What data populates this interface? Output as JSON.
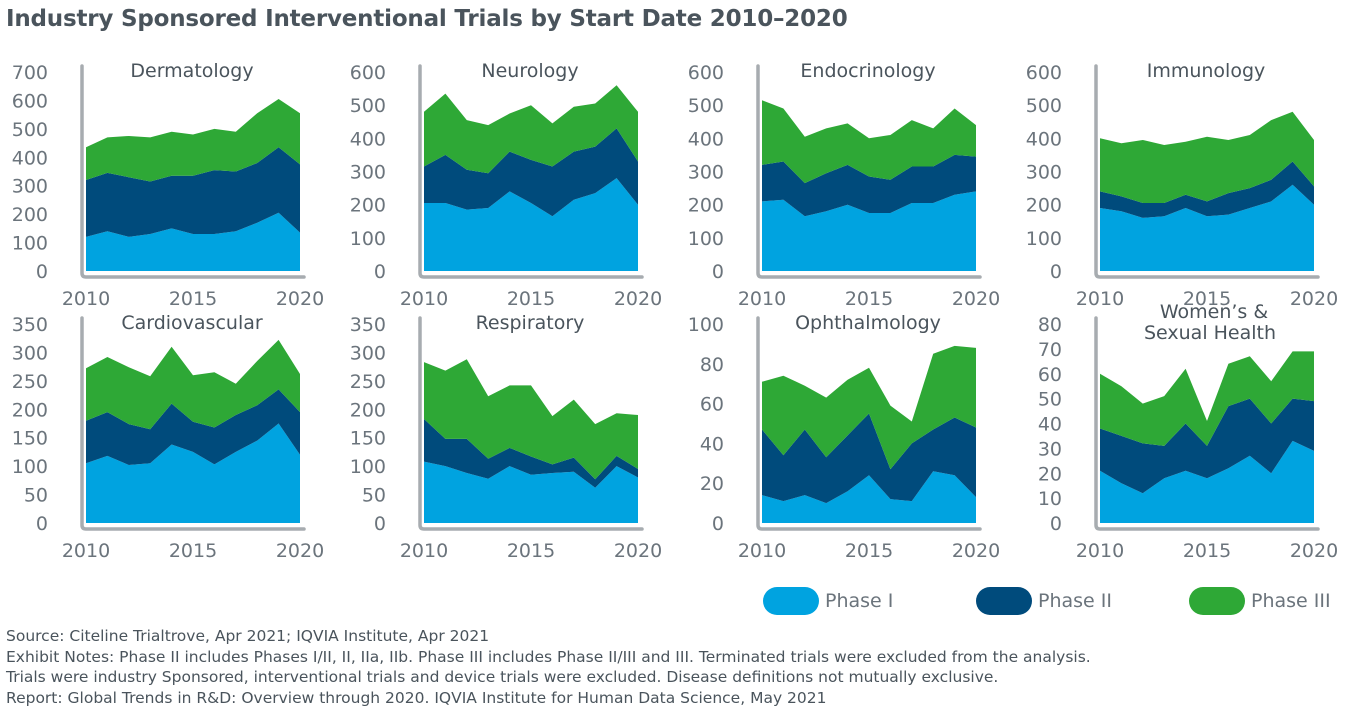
{
  "title": "Industry Sponsored Interventional Trials by Start Date 2010–2020",
  "colors": {
    "phase1": "#00a3e0",
    "phase2": "#004b7c",
    "phase3": "#2ea836",
    "axis": "#a7acb0",
    "text": "#6b747c"
  },
  "legend": {
    "phase1": "Phase I",
    "phase2": "Phase II",
    "phase3": "Phase III"
  },
  "notes": {
    "source": "Source: Citeline Trialtrove, Apr 2021; IQVIA Institute, Apr 2021",
    "exhibit": "Exhibit Notes: Phase II includes Phases I/II, II, IIa, IIb. Phase III includes Phase II/III and III. Terminated trials were excluded from the analysis.",
    "trials": "Trials were industry Sponsored, interventional trials and device trials were excluded. Disease definitions not mutually exclusive.",
    "report": "Report: Global Trends in R&D: Overview through 2020. IQVIA Institute for Human Data Science, May 2021"
  },
  "chart_data": [
    {
      "type": "area",
      "stacked": true,
      "title": "Dermatology",
      "x": [
        2010,
        2011,
        2012,
        2013,
        2014,
        2015,
        2016,
        2017,
        2018,
        2019,
        2020
      ],
      "xticks": [
        "2010",
        "2015",
        "2020"
      ],
      "ylim": [
        0,
        700
      ],
      "yticks": [
        "0",
        "100",
        "200",
        "300",
        "400",
        "500",
        "600",
        "700"
      ],
      "series": [
        {
          "name": "Phase I",
          "values": [
            120,
            140,
            120,
            130,
            150,
            130,
            130,
            140,
            170,
            205,
            135
          ]
        },
        {
          "name": "Phase II",
          "values": [
            200,
            205,
            210,
            185,
            185,
            205,
            225,
            210,
            210,
            230,
            240
          ]
        },
        {
          "name": "Phase III",
          "values": [
            115,
            125,
            145,
            155,
            155,
            145,
            145,
            140,
            175,
            170,
            180
          ]
        }
      ]
    },
    {
      "type": "area",
      "stacked": true,
      "title": "Neurology",
      "x": [
        2010,
        2011,
        2012,
        2013,
        2014,
        2015,
        2016,
        2017,
        2018,
        2019,
        2020
      ],
      "xticks": [
        "2010",
        "2015",
        "2020"
      ],
      "ylim": [
        0,
        600
      ],
      "yticks": [
        "0",
        "100",
        "200",
        "300",
        "400",
        "500",
        "600"
      ],
      "series": [
        {
          "name": "Phase I",
          "values": [
            205,
            205,
            185,
            190,
            240,
            205,
            165,
            215,
            235,
            280,
            200
          ]
        },
        {
          "name": "Phase II",
          "values": [
            110,
            145,
            120,
            105,
            120,
            130,
            150,
            145,
            140,
            150,
            130
          ]
        },
        {
          "name": "Phase III",
          "values": [
            165,
            185,
            150,
            145,
            115,
            165,
            130,
            135,
            130,
            130,
            150
          ]
        }
      ]
    },
    {
      "type": "area",
      "stacked": true,
      "title": "Endocrinology",
      "x": [
        2010,
        2011,
        2012,
        2013,
        2014,
        2015,
        2016,
        2017,
        2018,
        2019,
        2020
      ],
      "xticks": [
        "2010",
        "2015",
        "2020"
      ],
      "ylim": [
        0,
        600
      ],
      "yticks": [
        "0",
        "100",
        "200",
        "300",
        "400",
        "500",
        "600"
      ],
      "series": [
        {
          "name": "Phase I",
          "values": [
            210,
            215,
            165,
            180,
            200,
            175,
            175,
            205,
            205,
            230,
            240
          ]
        },
        {
          "name": "Phase II",
          "values": [
            110,
            115,
            100,
            115,
            120,
            110,
            100,
            110,
            110,
            120,
            105
          ]
        },
        {
          "name": "Phase III",
          "values": [
            195,
            160,
            140,
            135,
            125,
            115,
            135,
            140,
            115,
            140,
            95
          ]
        }
      ]
    },
    {
      "type": "area",
      "stacked": true,
      "title": "Immunology",
      "x": [
        2010,
        2011,
        2012,
        2013,
        2014,
        2015,
        2016,
        2017,
        2018,
        2019,
        2020
      ],
      "xticks": [
        "2010",
        "2015",
        "2020"
      ],
      "ylim": [
        0,
        600
      ],
      "yticks": [
        "0",
        "100",
        "200",
        "300",
        "400",
        "500",
        "600"
      ],
      "series": [
        {
          "name": "Phase I",
          "values": [
            190,
            180,
            160,
            165,
            190,
            165,
            170,
            190,
            210,
            260,
            200
          ]
        },
        {
          "name": "Phase II",
          "values": [
            50,
            45,
            45,
            40,
            40,
            45,
            65,
            60,
            65,
            70,
            55
          ]
        },
        {
          "name": "Phase III",
          "values": [
            160,
            160,
            190,
            175,
            160,
            195,
            160,
            160,
            180,
            150,
            140
          ]
        }
      ]
    },
    {
      "type": "area",
      "stacked": true,
      "title": "Cardiovascular",
      "x": [
        2010,
        2011,
        2012,
        2013,
        2014,
        2015,
        2016,
        2017,
        2018,
        2019,
        2020
      ],
      "xticks": [
        "2010",
        "2015",
        "2020"
      ],
      "ylim": [
        0,
        350
      ],
      "yticks": [
        "0",
        "50",
        "100",
        "150",
        "200",
        "250",
        "300",
        "350"
      ],
      "series": [
        {
          "name": "Phase I",
          "values": [
            105,
            118,
            102,
            105,
            138,
            125,
            103,
            125,
            145,
            175,
            120
          ]
        },
        {
          "name": "Phase II",
          "values": [
            75,
            77,
            72,
            60,
            72,
            53,
            65,
            65,
            62,
            60,
            75
          ]
        },
        {
          "name": "Phase III",
          "values": [
            92,
            97,
            100,
            93,
            100,
            82,
            97,
            55,
            78,
            87,
            67
          ]
        }
      ]
    },
    {
      "type": "area",
      "stacked": true,
      "title": "Respiratory",
      "x": [
        2010,
        2011,
        2012,
        2013,
        2014,
        2015,
        2016,
        2017,
        2018,
        2019,
        2020
      ],
      "xticks": [
        "2010",
        "2015",
        "2020"
      ],
      "ylim": [
        0,
        350
      ],
      "yticks": [
        "0",
        "50",
        "100",
        "150",
        "200",
        "250",
        "300",
        "350"
      ],
      "series": [
        {
          "name": "Phase I",
          "values": [
            108,
            100,
            88,
            78,
            100,
            85,
            88,
            90,
            62,
            100,
            80
          ]
        },
        {
          "name": "Phase II",
          "values": [
            75,
            48,
            60,
            35,
            32,
            32,
            15,
            25,
            15,
            18,
            15
          ]
        },
        {
          "name": "Phase III",
          "values": [
            100,
            120,
            140,
            110,
            110,
            125,
            85,
            102,
            97,
            75,
            95
          ]
        }
      ]
    },
    {
      "type": "area",
      "stacked": true,
      "title": "Ophthalmology",
      "x": [
        2010,
        2011,
        2012,
        2013,
        2014,
        2015,
        2016,
        2017,
        2018,
        2019,
        2020
      ],
      "xticks": [
        "2010",
        "2015",
        "2020"
      ],
      "ylim": [
        0,
        100
      ],
      "yticks": [
        "0",
        "20",
        "40",
        "60",
        "80",
        "100"
      ],
      "series": [
        {
          "name": "Phase I",
          "values": [
            14,
            11,
            14,
            10,
            16,
            24,
            12,
            11,
            26,
            24,
            13
          ]
        },
        {
          "name": "Phase II",
          "values": [
            33,
            23,
            33,
            23,
            28,
            31,
            15,
            29,
            21,
            29,
            35
          ]
        },
        {
          "name": "Phase III",
          "values": [
            24,
            40,
            22,
            30,
            28,
            23,
            32,
            11,
            38,
            36,
            40
          ]
        }
      ]
    },
    {
      "type": "area",
      "stacked": true,
      "title": "Women’s & Sexual Health",
      "x": [
        2010,
        2011,
        2012,
        2013,
        2014,
        2015,
        2016,
        2017,
        2018,
        2019,
        2020
      ],
      "xticks": [
        "2010",
        "2015",
        "2020"
      ],
      "ylim": [
        0,
        80
      ],
      "yticks": [
        "0",
        "10",
        "20",
        "30",
        "40",
        "50",
        "60",
        "70",
        "80"
      ],
      "series": [
        {
          "name": "Phase I",
          "values": [
            21,
            16,
            12,
            18,
            21,
            18,
            22,
            27,
            20,
            33,
            29
          ]
        },
        {
          "name": "Phase II",
          "values": [
            17,
            19,
            20,
            13,
            19,
            13,
            25,
            23,
            20,
            17,
            20
          ]
        },
        {
          "name": "Phase III",
          "values": [
            22,
            20,
            16,
            20,
            22,
            10,
            17,
            17,
            17,
            19,
            20
          ]
        }
      ]
    }
  ]
}
